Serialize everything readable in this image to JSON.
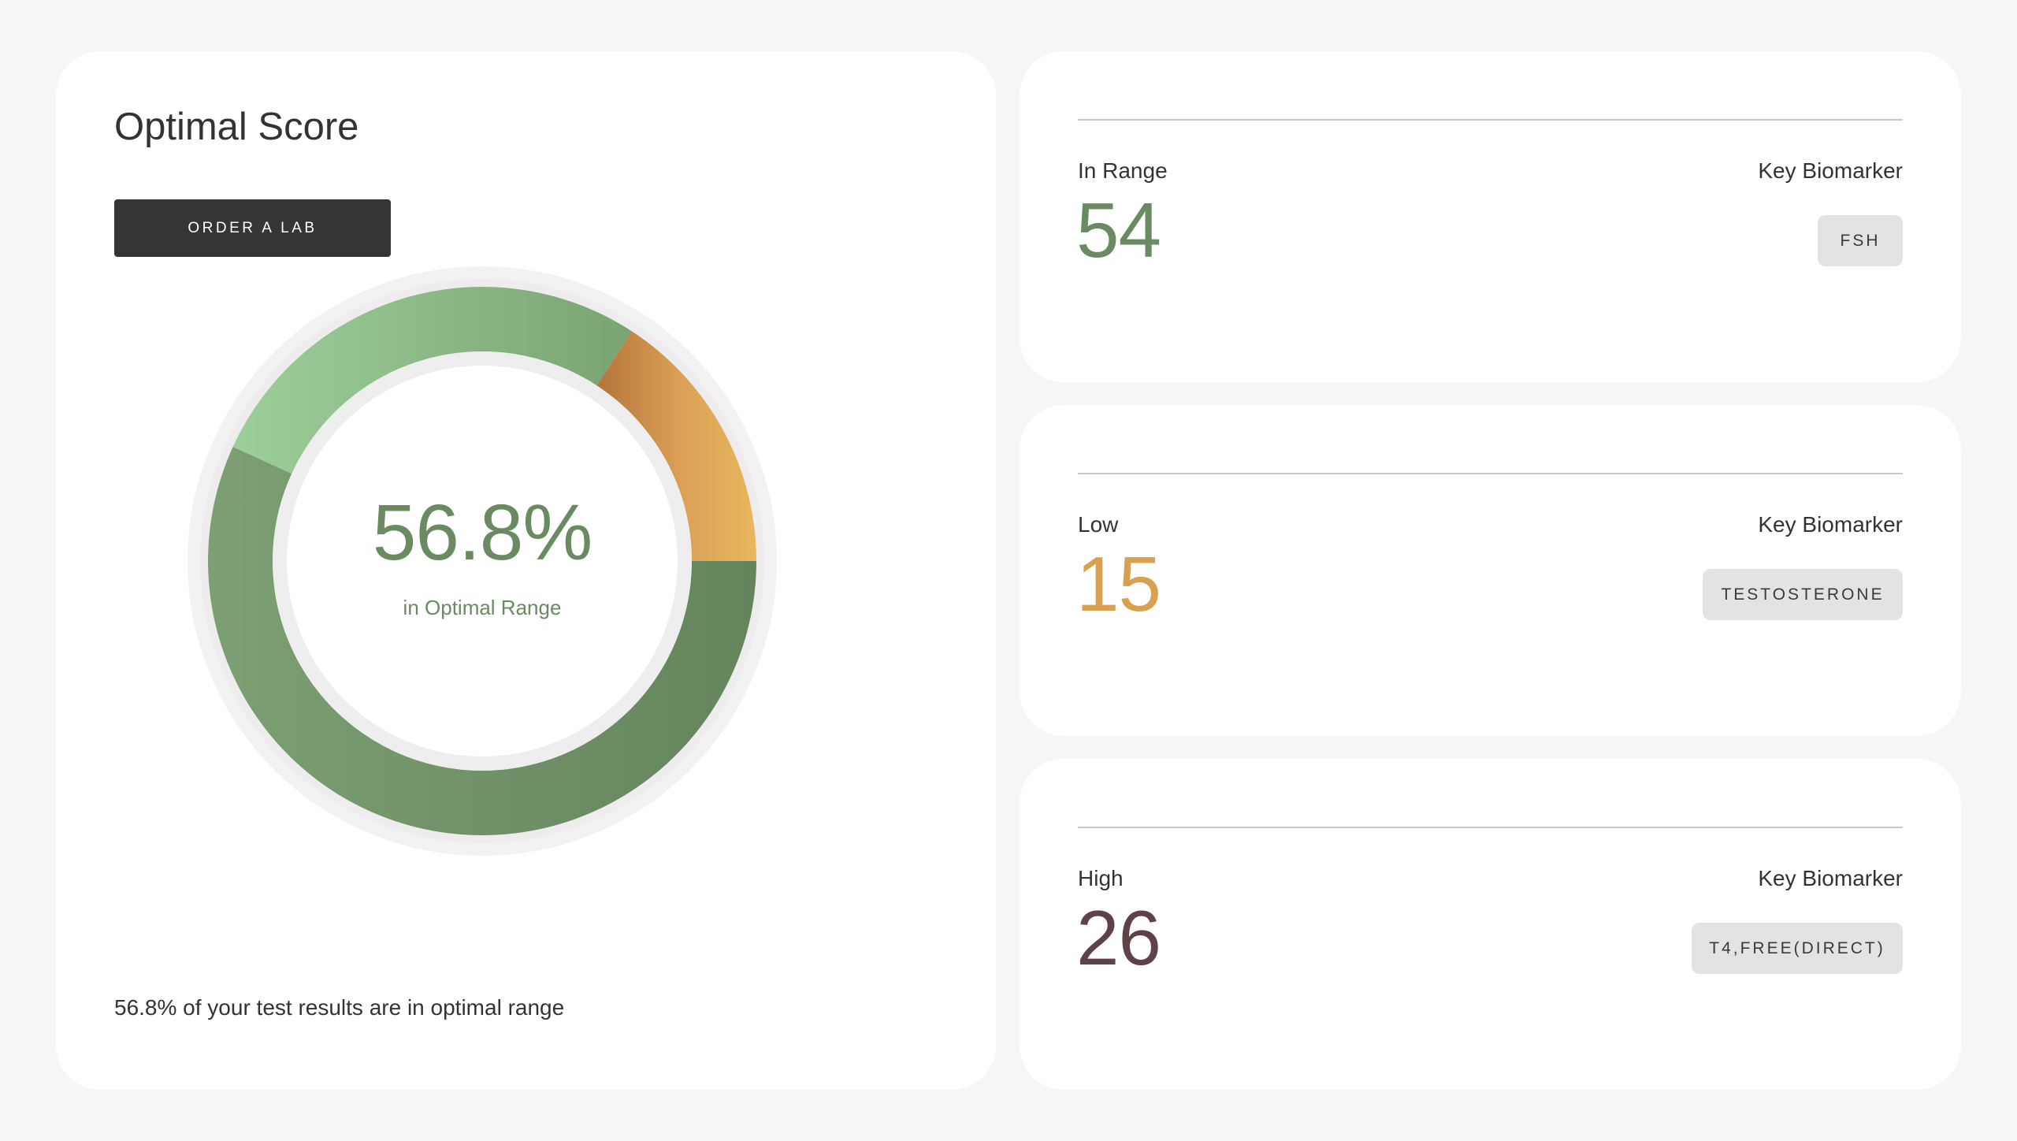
{
  "score_card": {
    "title": "Optimal Score",
    "order_button_label": "ORDER A LAB",
    "percent_text": "56.8%",
    "percent_caption": "in Optimal Range",
    "footer_text": "56.8% of your test results are in optimal range"
  },
  "chart_data": {
    "type": "pie",
    "title": "",
    "segments": [
      {
        "label": "In Range",
        "value": 54,
        "color": "#6a8a62"
      },
      {
        "label": "Low",
        "value": 15,
        "color": "#e8b45e"
      },
      {
        "label": "High",
        "value": 26,
        "color": "#a8d7a6"
      }
    ],
    "center_text": "56.8%"
  },
  "stats": [
    {
      "label": "In Range",
      "value": "54",
      "value_color": "#6a8a62",
      "biomarker_label": "Key Biomarker",
      "biomarker": "FSH"
    },
    {
      "label": "Low",
      "value": "15",
      "value_color": "#d9a04f",
      "biomarker_label": "Key Biomarker",
      "biomarker": "TESTOSTERONE"
    },
    {
      "label": "High",
      "value": "26",
      "value_color": "#5e4248",
      "biomarker_label": "Key Biomarker",
      "biomarker": "T4,FREE(DIRECT)"
    }
  ],
  "colors": {
    "background": "#f6f6f6",
    "card": "#ffffff",
    "button": "#353535",
    "chip": "#e3e3e3"
  }
}
